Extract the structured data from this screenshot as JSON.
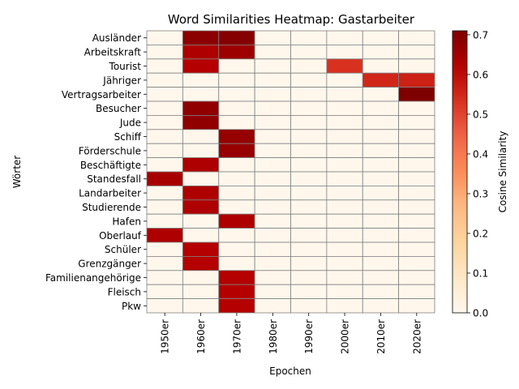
{
  "chart_data": {
    "type": "heatmap",
    "title": "Word Similarities Heatmap: Gastarbeiter",
    "xlabel": "Epochen",
    "ylabel": "Wörter",
    "colorbar_label": "Cosine Similarity",
    "colorbar_ticks": [
      "0.0",
      "0.1",
      "0.2",
      "0.3",
      "0.4",
      "0.5",
      "0.6",
      "0.7"
    ],
    "value_range": [
      0,
      0.71
    ],
    "colormap": "OrRd",
    "colormap_stops": [
      "#fff7ec",
      "#fee8c8",
      "#fdd49e",
      "#fdbb84",
      "#fc8d59",
      "#ef6548",
      "#d7301f",
      "#b30000",
      "#7f0000"
    ],
    "grid_color": "#808080",
    "x_categories": [
      "1950er",
      "1960er",
      "1970er",
      "1980er",
      "1990er",
      "2000er",
      "2010er",
      "2020er"
    ],
    "y_categories": [
      "Ausländer",
      "Arbeitskraft",
      "Tourist",
      "Jähriger",
      "Vertragsarbeiter",
      "Besucher",
      "Jude",
      "Schiff",
      "Förderschule",
      "Beschäftigte",
      "Standesfall",
      "Landarbeiter",
      "Studierende",
      "Hafen",
      "Oberlauf",
      "Schüler",
      "Grenzgänger",
      "Familienangehörige",
      "Fleisch",
      "Pkw"
    ],
    "values": [
      [
        0,
        0.69,
        0.7,
        0,
        0,
        0,
        0,
        0
      ],
      [
        0,
        0.63,
        0.66,
        0,
        0,
        0,
        0,
        0
      ],
      [
        0,
        0.62,
        0,
        0,
        0,
        0.53,
        0,
        0
      ],
      [
        0,
        0,
        0,
        0,
        0,
        0,
        0.55,
        0.56
      ],
      [
        0,
        0,
        0,
        0,
        0,
        0,
        0,
        0.71
      ],
      [
        0,
        0.68,
        0,
        0,
        0,
        0,
        0,
        0
      ],
      [
        0,
        0.68,
        0,
        0,
        0,
        0,
        0,
        0
      ],
      [
        0,
        0,
        0.67,
        0,
        0,
        0,
        0,
        0
      ],
      [
        0,
        0,
        0.67,
        0,
        0,
        0,
        0,
        0
      ],
      [
        0,
        0.63,
        0,
        0,
        0,
        0,
        0,
        0
      ],
      [
        0.64,
        0,
        0,
        0,
        0,
        0,
        0,
        0
      ],
      [
        0,
        0.63,
        0,
        0,
        0,
        0,
        0,
        0
      ],
      [
        0,
        0.63,
        0,
        0,
        0,
        0,
        0,
        0
      ],
      [
        0,
        0,
        0.63,
        0,
        0,
        0,
        0,
        0
      ],
      [
        0.63,
        0,
        0,
        0,
        0,
        0,
        0,
        0
      ],
      [
        0,
        0.62,
        0,
        0,
        0,
        0,
        0,
        0
      ],
      [
        0,
        0.62,
        0,
        0,
        0,
        0,
        0,
        0
      ],
      [
        0,
        0,
        0.62,
        0,
        0,
        0,
        0,
        0
      ],
      [
        0,
        0,
        0.62,
        0,
        0,
        0,
        0,
        0
      ],
      [
        0,
        0,
        0.62,
        0,
        0,
        0,
        0,
        0
      ]
    ]
  }
}
